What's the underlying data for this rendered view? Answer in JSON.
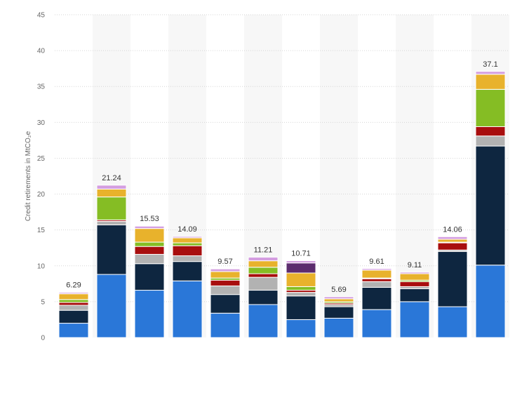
{
  "chart_data": {
    "type": "bar",
    "stacked": true,
    "title": "",
    "xlabel": "",
    "ylabel": "Credit retirements in MtCO₂e",
    "ylim": [
      0,
      45
    ],
    "yticks": [
      0,
      5,
      10,
      15,
      20,
      25,
      30,
      35,
      40,
      45
    ],
    "grid": true,
    "categories": [
      "",
      "",
      "",
      "",
      "",
      "",
      "",
      "",
      "",
      "",
      "",
      ""
    ],
    "totals": [
      "6.29",
      "21.24",
      "15.53",
      "14.09",
      "9.57",
      "11.21",
      "10.71",
      "5.69",
      "9.61",
      "9.11",
      "14.06",
      "37.1"
    ],
    "series": [
      {
        "color": "#2a77d8",
        "values": [
          2.0,
          8.8,
          6.6,
          7.9,
          3.4,
          4.6,
          2.5,
          2.7,
          3.9,
          5.0,
          4.3,
          10.1
        ]
      },
      {
        "color": "#0e2640",
        "values": [
          1.8,
          6.9,
          3.7,
          2.7,
          2.6,
          2.0,
          3.3,
          1.6,
          3.1,
          1.8,
          7.7,
          16.6
        ]
      },
      {
        "color": "#b2b2b2",
        "values": [
          0.7,
          0.5,
          1.3,
          0.8,
          1.2,
          1.8,
          0.5,
          0.3,
          0.8,
          0.3,
          0.2,
          1.4
        ]
      },
      {
        "color": "#a80e0e",
        "values": [
          0.4,
          0.2,
          1.1,
          1.4,
          0.8,
          0.5,
          0.3,
          0.2,
          0.4,
          0.7,
          1.0,
          1.3
        ]
      },
      {
        "color": "#85bd24",
        "values": [
          0.4,
          3.2,
          0.6,
          0.4,
          0.3,
          0.9,
          0.5,
          0.2,
          0.1,
          0.2,
          0.1,
          5.2
        ]
      },
      {
        "color": "#e8b22c",
        "values": [
          0.8,
          1.1,
          1.9,
          0.7,
          0.9,
          0.9,
          1.9,
          0.4,
          1.1,
          0.9,
          0.4,
          2.1
        ]
      },
      {
        "color": "#5c2c6e",
        "values": [
          0,
          0,
          0,
          0,
          0,
          0,
          1.4,
          0,
          0,
          0,
          0,
          0
        ]
      },
      {
        "color": "#d49ee0",
        "values": [
          0.19,
          0.54,
          0.33,
          0.19,
          0.37,
          0.51,
          0.31,
          0.29,
          0.21,
          0.21,
          0.36,
          0.4
        ]
      }
    ]
  }
}
